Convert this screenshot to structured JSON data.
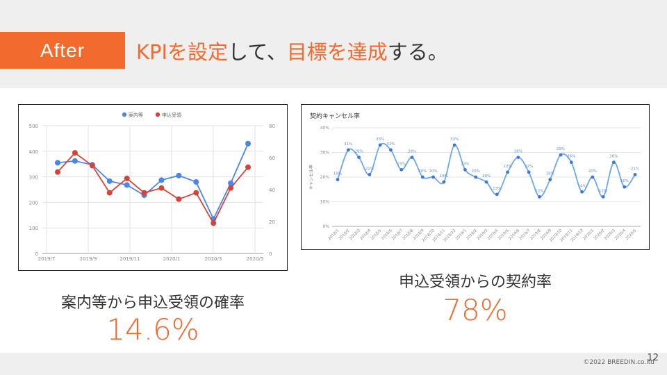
{
  "header": {
    "tag": "After",
    "headline_parts": [
      {
        "text": "KPIを設定",
        "highlight": true
      },
      {
        "text": "して、",
        "highlight": false
      },
      {
        "text": "目標を達成",
        "highlight": true
      },
      {
        "text": "する。",
        "highlight": false
      }
    ]
  },
  "colors": {
    "accent": "#f26a2e",
    "series_blue": "#4a86e8",
    "series_red": "#d44437",
    "line_blue2": "#6fa8e6"
  },
  "left_panel": {
    "caption": "案内等から申込受領の確率",
    "rate": "14.6%"
  },
  "right_panel": {
    "caption": "申込受領からの契約率",
    "rate": "78%"
  },
  "footer": {
    "copyright": "©2022 BREEDIN.co.ltd",
    "page_number": "12"
  },
  "chart_data": [
    {
      "type": "line",
      "title": "",
      "legend": "top-center",
      "x_tick_labels": [
        "2019/7",
        "2019/9",
        "2019/11",
        "2020/1",
        "2020/3",
        "2020/5"
      ],
      "y_left_ticks": [
        "0",
        "100",
        "200",
        "300",
        "400",
        "500"
      ],
      "y_right_ticks": [
        "0",
        "20",
        "40",
        "60",
        "80"
      ],
      "ylim_left": [
        0,
        500
      ],
      "ylim_right": [
        0,
        80
      ],
      "grid": true,
      "series": [
        {
          "name": "案内等",
          "axis": "left",
          "values": [
            355,
            362,
            347,
            283,
            268,
            228,
            287,
            305,
            280,
            135,
            275,
            430
          ]
        },
        {
          "name": "申込受領",
          "axis": "right",
          "values": [
            51,
            63,
            55,
            38,
            47,
            38,
            41,
            34,
            38,
            19,
            41,
            54
          ]
        }
      ]
    },
    {
      "type": "line",
      "title": "契約キャンセル率",
      "ylabel": "キャンセル率",
      "y_tick_labels": [
        "0%",
        "10%",
        "20%",
        "30%",
        "40%"
      ],
      "ylim": [
        0,
        40
      ],
      "grid": true,
      "categories": [
        "2018/1",
        "2018/2",
        "2018/3",
        "2018/4",
        "2018/5",
        "2018/6",
        "2018/7",
        "2018/8",
        "2018/9",
        "2018/10",
        "2018/11",
        "2018/12",
        "2019/1",
        "2019/2",
        "2019/3",
        "2019/4",
        "2019/5",
        "2019/6",
        "2019/7",
        "2019/8",
        "2019/9",
        "2019/10",
        "2019/11",
        "2019/12",
        "2020/1",
        "2020/2",
        "2020/3",
        "2020/4",
        "2020/5"
      ],
      "values": [
        19,
        31,
        28,
        21,
        33,
        31,
        23,
        28,
        20,
        20,
        18,
        33,
        23,
        20,
        18,
        13,
        22,
        28,
        22,
        12,
        19,
        29,
        26,
        14,
        20,
        12,
        26,
        16,
        21
      ],
      "data_labels": [
        "19%",
        "31%",
        "28%",
        "21%",
        "33%",
        "31%",
        "23%",
        "28%",
        "20%",
        "20%",
        "18%",
        "33%",
        "23%",
        "20%",
        "18%",
        "13%",
        "22%",
        "28%",
        "22%",
        "12%",
        "19%",
        "29%",
        "26%",
        "14%",
        "20%",
        "12%",
        "26%",
        "16%",
        "21%"
      ]
    }
  ]
}
